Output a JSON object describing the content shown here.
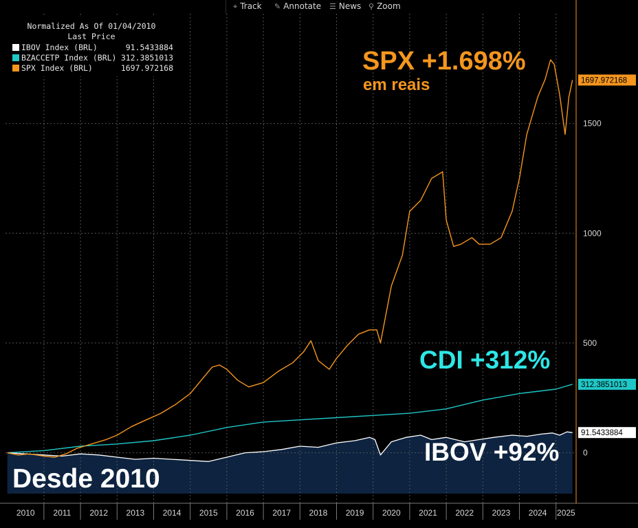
{
  "toolbar": {
    "buttons": [
      {
        "icon": "crosshair-icon",
        "glyph": "⌖",
        "label": "Track"
      },
      {
        "icon": "pencil-icon",
        "glyph": "✎",
        "label": "Annotate"
      },
      {
        "icon": "news-icon",
        "glyph": "☰",
        "label": "News"
      },
      {
        "icon": "magnifier-icon",
        "glyph": "⚲",
        "label": "Zoom"
      }
    ]
  },
  "legend": {
    "title": "Normalized As Of 01/04/2010",
    "subtitle": "Last Price",
    "items": [
      {
        "name": "IBOV Index (BRL)",
        "value": "91.5433884",
        "color": "#ffffff"
      },
      {
        "name": "BZACCETP Index (BRL)",
        "value": "312.3851013",
        "color": "#20c7c7"
      },
      {
        "name": "SPX Index (BRL)",
        "value": "1697.972168",
        "color": "#f5961e"
      }
    ]
  },
  "annotations": {
    "spx_main": "SPX +1.698%",
    "spx_sub": "em reais",
    "cdi": "CDI +312%",
    "ibov": "IBOV +92%",
    "box": "Desde 2010"
  },
  "colors": {
    "spx": "#f5961e",
    "cdi": "#20c7c7",
    "ibov": "#ffffff",
    "ibov_fill": "#0d2340",
    "grid": "#555555",
    "axis_text": "#d8d8d8"
  },
  "chart_data": {
    "type": "line",
    "title": "",
    "xlabel": "",
    "ylabel": "",
    "xlim": [
      2009.95,
      2025.55
    ],
    "ylim": [
      -230,
      2000
    ],
    "yticks": [
      0,
      500,
      1000,
      1500
    ],
    "xtick_labels": [
      "2010",
      "2011",
      "2012",
      "2013",
      "2014",
      "2015",
      "2016",
      "2017",
      "2018",
      "2019",
      "2020",
      "2021",
      "2022",
      "2023",
      "2024",
      "2025"
    ],
    "last_price_labels": {
      "SPX": "1697.972168",
      "CDI": "312.3851013",
      "IBOV": "91.5433884"
    },
    "series": [
      {
        "name": "SPX Index (BRL)",
        "x": [
          2010.0,
          2010.3,
          2010.6,
          2011.0,
          2011.3,
          2011.6,
          2011.9,
          2012.3,
          2012.7,
          2013.0,
          2013.4,
          2013.8,
          2014.2,
          2014.6,
          2015.0,
          2015.3,
          2015.6,
          2015.8,
          2016.0,
          2016.3,
          2016.6,
          2017.0,
          2017.4,
          2017.8,
          2018.1,
          2018.3,
          2018.5,
          2018.8,
          2019.0,
          2019.3,
          2019.6,
          2019.9,
          2020.1,
          2020.2,
          2020.5,
          2020.8,
          2021.0,
          2021.3,
          2021.6,
          2021.9,
          2022.0,
          2022.2,
          2022.4,
          2022.7,
          2022.9,
          2023.2,
          2023.5,
          2023.8,
          2024.0,
          2024.2,
          2024.5,
          2024.7,
          2024.85,
          2024.95,
          2025.1,
          2025.25,
          2025.35,
          2025.45
        ],
        "values": [
          0,
          -10,
          -5,
          -15,
          -20,
          -5,
          20,
          40,
          60,
          80,
          120,
          150,
          180,
          220,
          270,
          330,
          390,
          400,
          380,
          330,
          300,
          320,
          370,
          410,
          460,
          510,
          420,
          380,
          430,
          490,
          540,
          560,
          560,
          500,
          760,
          900,
          1100,
          1150,
          1250,
          1280,
          1060,
          940,
          950,
          980,
          950,
          950,
          980,
          1100,
          1250,
          1450,
          1620,
          1700,
          1790,
          1770,
          1630,
          1450,
          1620,
          1698
        ]
      },
      {
        "name": "BZACCETP Index (BRL)",
        "x": [
          2010.0,
          2011.0,
          2012.0,
          2013.0,
          2014.0,
          2015.0,
          2016.0,
          2017.0,
          2018.0,
          2019.0,
          2020.0,
          2021.0,
          2022.0,
          2023.0,
          2024.0,
          2025.0,
          2025.45
        ],
        "values": [
          0,
          10,
          30,
          40,
          55,
          80,
          115,
          140,
          150,
          160,
          170,
          180,
          200,
          240,
          270,
          290,
          312
        ]
      },
      {
        "name": "IBOV Index (BRL)",
        "x": [
          2010.0,
          2010.5,
          2011.0,
          2011.5,
          2012.0,
          2012.5,
          2013.0,
          2013.5,
          2014.0,
          2014.5,
          2015.0,
          2015.5,
          2016.0,
          2016.5,
          2017.0,
          2017.5,
          2018.0,
          2018.5,
          2019.0,
          2019.5,
          2019.9,
          2020.05,
          2020.2,
          2020.5,
          2020.9,
          2021.3,
          2021.6,
          2022.0,
          2022.5,
          2022.9,
          2023.3,
          2023.8,
          2024.2,
          2024.6,
          2024.9,
          2025.1,
          2025.3,
          2025.45
        ],
        "values": [
          0,
          -5,
          -10,
          -15,
          -5,
          -10,
          -20,
          -30,
          -25,
          -30,
          -35,
          -40,
          -20,
          0,
          5,
          15,
          30,
          25,
          45,
          55,
          70,
          60,
          -10,
          50,
          70,
          80,
          60,
          70,
          50,
          60,
          70,
          80,
          75,
          85,
          90,
          80,
          95,
          92
        ]
      }
    ]
  }
}
